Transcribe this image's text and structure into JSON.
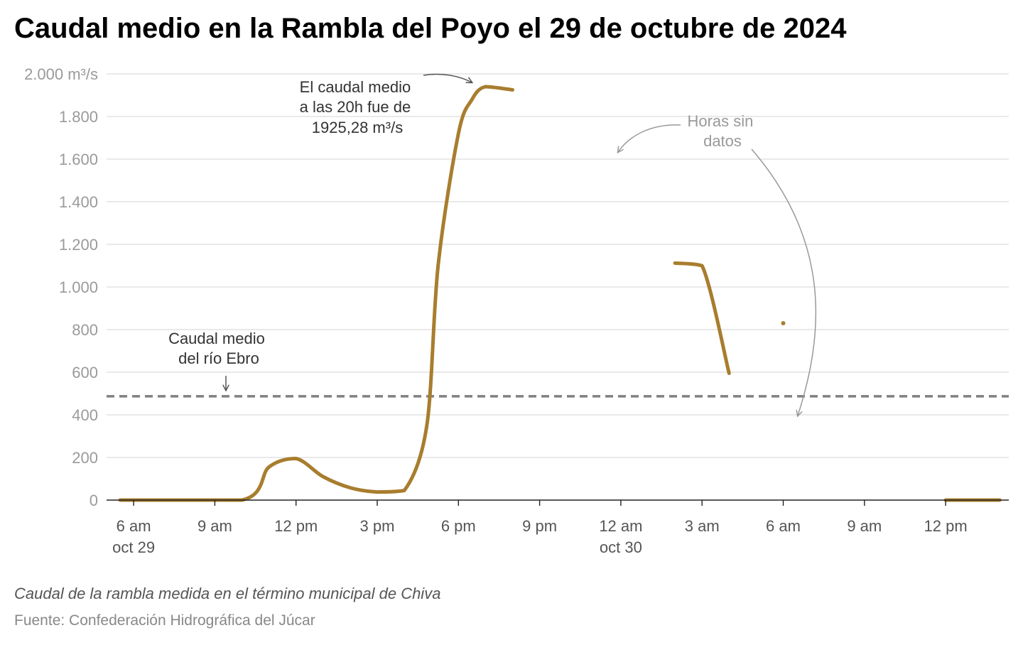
{
  "title": "Caudal medio en la Rambla del Poyo el 29 de octubre de 2024",
  "note": "Caudal de la rambla medida en el término municipal de Chiva",
  "source": "Fuente: Confederación Hidrográfica del Júcar",
  "chart_data": {
    "type": "line",
    "xlim": [
      "2024-10-29T05:00",
      "2024-10-30T14:20"
    ],
    "ylim": [
      0,
      2000
    ],
    "grid": true,
    "y_ticks": [
      {
        "value": 0,
        "label": "0"
      },
      {
        "value": 200,
        "label": "200"
      },
      {
        "value": 400,
        "label": "400"
      },
      {
        "value": 600,
        "label": "600"
      },
      {
        "value": 800,
        "label": "800"
      },
      {
        "value": 1000,
        "label": "1.000"
      },
      {
        "value": 1200,
        "label": "1.200"
      },
      {
        "value": 1400,
        "label": "1.400"
      },
      {
        "value": 1600,
        "label": "1.600"
      },
      {
        "value": 1800,
        "label": "1.800"
      },
      {
        "value": 2000,
        "label": "2.000 m³/s"
      }
    ],
    "x_ticks": [
      {
        "x": "2024-10-29T06:00",
        "label": "6 am",
        "sublabel": "oct 29"
      },
      {
        "x": "2024-10-29T09:00",
        "label": "9 am",
        "sublabel": ""
      },
      {
        "x": "2024-10-29T12:00",
        "label": "12 pm",
        "sublabel": ""
      },
      {
        "x": "2024-10-29T15:00",
        "label": "3 pm",
        "sublabel": ""
      },
      {
        "x": "2024-10-29T18:00",
        "label": "6 pm",
        "sublabel": ""
      },
      {
        "x": "2024-10-29T21:00",
        "label": "9 pm",
        "sublabel": ""
      },
      {
        "x": "2024-10-30T00:00",
        "label": "12 am",
        "sublabel": "oct 30"
      },
      {
        "x": "2024-10-30T03:00",
        "label": "3 am",
        "sublabel": ""
      },
      {
        "x": "2024-10-30T06:00",
        "label": "6 am",
        "sublabel": ""
      },
      {
        "x": "2024-10-30T09:00",
        "label": "9 am",
        "sublabel": ""
      },
      {
        "x": "2024-10-30T12:00",
        "label": "12 pm",
        "sublabel": ""
      }
    ],
    "series": [
      {
        "color": "#A87D2E",
        "segments": [
          [
            {
              "x": "2024-10-29T05:30",
              "y": 0
            },
            {
              "x": "2024-10-29T10:00",
              "y": 0
            },
            {
              "x": "2024-10-29T11:00",
              "y": 155
            },
            {
              "x": "2024-10-29T12:00",
              "y": 195
            },
            {
              "x": "2024-10-29T13:00",
              "y": 110
            },
            {
              "x": "2024-10-29T14:00",
              "y": 58
            },
            {
              "x": "2024-10-29T15:00",
              "y": 38
            },
            {
              "x": "2024-10-29T16:00",
              "y": 45
            },
            {
              "x": "2024-10-29T16:50",
              "y": 350
            },
            {
              "x": "2024-10-29T17:15",
              "y": 1100
            },
            {
              "x": "2024-10-29T18:00",
              "y": 1720
            },
            {
              "x": "2024-10-29T18:30",
              "y": 1880
            },
            {
              "x": "2024-10-29T19:00",
              "y": 1940
            },
            {
              "x": "2024-10-29T20:00",
              "y": 1925
            }
          ],
          [
            {
              "x": "2024-10-30T02:00",
              "y": 1112
            },
            {
              "x": "2024-10-30T03:00",
              "y": 1100
            },
            {
              "x": "2024-10-30T04:00",
              "y": 595
            }
          ],
          [
            {
              "x": "2024-10-30T06:00",
              "y": 830
            }
          ],
          [
            {
              "x": "2024-10-30T12:00",
              "y": 0
            },
            {
              "x": "2024-10-30T14:00",
              "y": 0
            }
          ]
        ]
      }
    ],
    "reference_line": {
      "y": 487,
      "color": "#808080",
      "style": "dashed"
    },
    "annotations": {
      "peak": [
        "El caudal medio",
        "a las 20h fue de",
        "1925,28 m³/s"
      ],
      "gaps": [
        "Horas sin",
        "datos"
      ],
      "ebro": [
        "Caudal medio",
        "del río Ebro"
      ]
    }
  }
}
